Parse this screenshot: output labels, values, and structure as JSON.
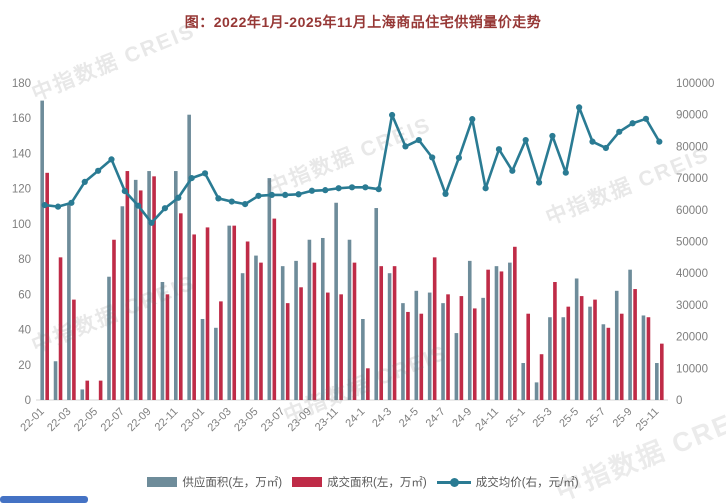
{
  "title": "图：2022年1月-2025年11月上海商品住宅供销量价走势",
  "watermark_text": "中指数据  CREIS",
  "legend": {
    "supply": "供应面积(左，万㎡)",
    "sold": "成交面积(左，万㎡)",
    "price": "成交均价(右，元/㎡)"
  },
  "colors": {
    "supply_bar": "#6e8c9a",
    "sold_bar": "#bf2b47",
    "price_line": "#2a7b93",
    "title_text": "#963735",
    "axis_text": "#7f7f7f",
    "baseline": "#d6d6d6",
    "blue_strip": "#4472c4"
  },
  "chart_data": {
    "type": "bar+line combo",
    "title": "图：2022年1月-2025年11月上海商品住宅供销量价走势",
    "categories": [
      "22-01",
      "22-02",
      "22-03",
      "22-04",
      "22-05",
      "22-06",
      "22-07",
      "22-08",
      "22-09",
      "22-10",
      "22-11",
      "22-12",
      "23-01",
      "23-02",
      "23-03",
      "23-04",
      "23-05",
      "23-06",
      "23-07",
      "23-08",
      "23-09",
      "23-10",
      "23-11",
      "23-12",
      "24-1",
      "24-2",
      "24-3",
      "24-4",
      "24-5",
      "24-6",
      "24-7",
      "24-8",
      "24-9",
      "24-10",
      "24-11",
      "24-12",
      "25-1",
      "25-2",
      "25-3",
      "25-4",
      "25-5",
      "25-6",
      "25-7",
      "25-8",
      "25-9",
      "25-10",
      "25-11"
    ],
    "x_tick_every": 2,
    "left_axis": {
      "min": 0,
      "max": 180,
      "step": 20,
      "ticks": [
        0,
        20,
        40,
        60,
        80,
        100,
        120,
        140,
        160,
        180
      ]
    },
    "right_axis": {
      "min": 0,
      "max": 100000,
      "step": 10000,
      "ticks": [
        0,
        10000,
        20000,
        30000,
        40000,
        50000,
        60000,
        70000,
        80000,
        90000,
        100000
      ]
    },
    "grid": false,
    "legend_position": "bottom",
    "series": [
      {
        "name": "供应面积(左，万㎡)",
        "type": "bar",
        "axis": "left",
        "color_key": "supply_bar",
        "values": [
          170,
          22,
          112,
          6,
          0,
          70,
          110,
          125,
          130,
          67,
          130,
          162,
          46,
          41,
          99,
          72,
          82,
          126,
          76,
          79,
          91,
          92,
          112,
          91,
          46,
          109,
          72,
          55,
          62,
          61,
          55,
          38,
          79,
          58,
          76,
          78,
          21,
          10,
          47,
          47,
          69,
          53,
          43,
          62,
          74,
          48,
          21
        ]
      },
      {
        "name": "成交面积(左，万㎡)",
        "type": "bar",
        "axis": "left",
        "color_key": "sold_bar",
        "values": [
          129,
          81,
          57,
          11,
          11,
          91,
          130,
          119,
          127,
          60,
          106,
          94,
          98,
          56,
          99,
          90,
          78,
          103,
          55,
          64,
          78,
          61,
          60,
          78,
          18,
          76,
          76,
          50,
          49,
          81,
          60,
          59,
          52,
          74,
          73,
          87,
          49,
          26,
          67,
          53,
          59,
          57,
          41,
          49,
          63,
          47,
          32
        ]
      },
      {
        "name": "成交均价(右，元/㎡)",
        "type": "line",
        "axis": "right",
        "color_key": "price_line",
        "values": [
          61500,
          61000,
          62200,
          68800,
          72300,
          75900,
          65900,
          61300,
          55900,
          60500,
          63800,
          70000,
          71500,
          63600,
          62600,
          61800,
          64400,
          64700,
          64700,
          64900,
          66000,
          66200,
          66800,
          67100,
          67100,
          66500,
          89900,
          80000,
          82000,
          76500,
          65000,
          76400,
          88600,
          66800,
          79100,
          72300,
          82000,
          68600,
          83300,
          71700,
          92300,
          81500,
          79500,
          84600,
          87300,
          88700,
          81500
        ]
      }
    ]
  }
}
